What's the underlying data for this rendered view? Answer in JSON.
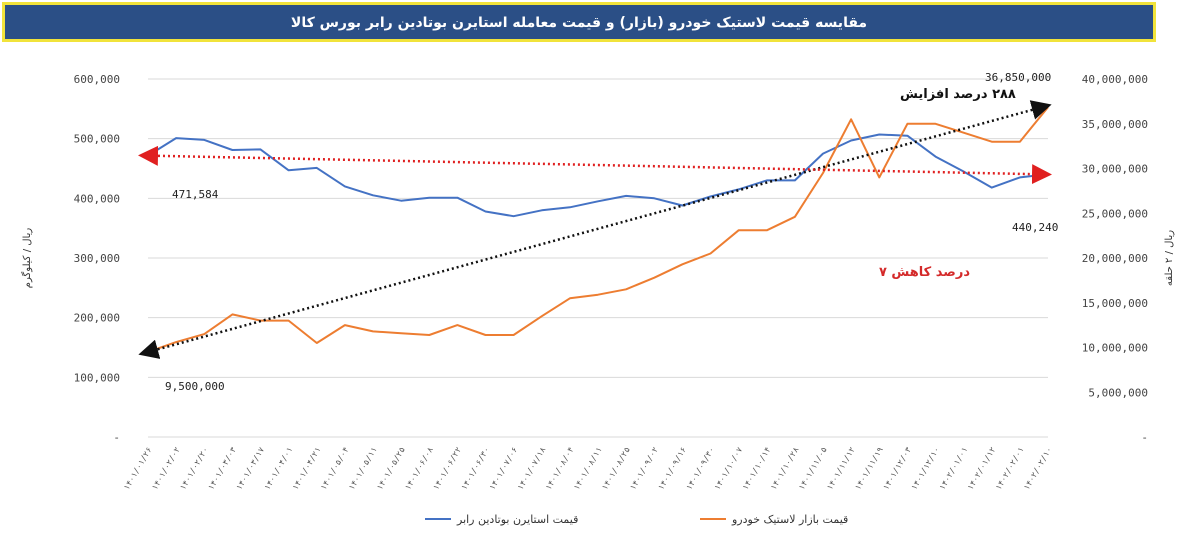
{
  "title": "مقایسه قیمت لاستیک خودرو (بازار) و قیمت معامله استایرن بوتادین رابر بورس کالا",
  "chart_data": {
    "type": "line",
    "title": "مقایسه قیمت لاستیک خودرو (بازار) و قیمت معامله استایرن بوتادین رابر بورس کالا",
    "left_axis": {
      "label": "ریال / کیلوگرم",
      "min": 0,
      "max": 600000,
      "ticks": [
        "-",
        "100,000",
        "200,000",
        "300,000",
        "400,000",
        "500,000",
        "600,000"
      ]
    },
    "right_axis": {
      "label": "ریال / ۲ حلقه",
      "min": 0,
      "max": 40000000,
      "ticks": [
        "-",
        "5,000,000",
        "10,000,000",
        "15,000,000",
        "20,000,000",
        "25,000,000",
        "30,000,000",
        "35,000,000",
        "40,000,000"
      ]
    },
    "categories": [
      "۱۴۰۱/۰۱/۲۶",
      "۱۴۰۱/۰۲/۰۲",
      "۱۴۰۱/۰۲/۲۰",
      "۱۴۰۱/۰۳/۰۳",
      "۱۴۰۱/۰۳/۱۷",
      "۱۴۰۱/۰۴/۰۱",
      "۱۴۰۱/۰۴/۲۱",
      "۱۴۰۱/۰۵/۰۴",
      "۱۴۰۱/۰۵/۱۱",
      "۱۴۰۱/۰۵/۲۵",
      "۱۴۰۱/۰۶/۰۸",
      "۱۴۰۱/۰۶/۲۲",
      "۱۴۰۱/۰۶/۳۰",
      "۱۴۰۱/۰۷/۰۶",
      "۱۴۰۱/۰۷/۱۸",
      "۱۴۰۱/۰۸/۰۴",
      "۱۴۰۱/۰۸/۱۱",
      "۱۴۰۱/۰۸/۲۵",
      "۱۴۰۱/۰۹/۰۲",
      "۱۴۰۱/۰۹/۱۶",
      "۱۴۰۱/۰۹/۳۰",
      "۱۴۰۱/۱۰/۰۷",
      "۱۴۰۱/۱۰/۱۴",
      "۱۴۰۱/۱۰/۲۸",
      "۱۴۰۱/۱۱/۰۵",
      "۱۴۰۱/۱۱/۱۲",
      "۱۴۰۱/۱۱/۱۹",
      "۱۴۰۱/۱۲/۰۳",
      "۱۴۰۱/۱۲/۱۰",
      "۱۴۰۲/۰۱/۰۱",
      "۱۴۰۲/۰۱/۱۲",
      "۱۴۰۲/۰۲/۰۱",
      "۱۴۰۲/۰۲/۱۰"
    ],
    "series": [
      {
        "name": "قیمت استایرن بوتادین رابر",
        "axis": "left",
        "color": "#4472c4",
        "values": [
          471584,
          501000,
          498000,
          481000,
          482000,
          447000,
          451000,
          420000,
          405000,
          396000,
          401000,
          401000,
          378000,
          370000,
          380000,
          385000,
          395000,
          404000,
          400000,
          388000,
          403000,
          415000,
          430000,
          430000,
          475000,
          497000,
          507000,
          505000,
          470000,
          445000,
          418000,
          435000,
          440240
        ]
      },
      {
        "name": "قیمت بازار لاستیک خودرو",
        "axis": "right",
        "color": "#ed7d31",
        "values": [
          9500000,
          10600000,
          11500000,
          13700000,
          13000000,
          13000000,
          10500000,
          12500000,
          11800000,
          11600000,
          11400000,
          12500000,
          11400000,
          11400000,
          13500000,
          15500000,
          15900000,
          16500000,
          17800000,
          19300000,
          20500000,
          23100000,
          23100000,
          24600000,
          29500000,
          35500000,
          29000000,
          35000000,
          35000000,
          34000000,
          33000000,
          33000000,
          36850000
        ]
      }
    ],
    "trendlines": [
      {
        "series": "قیمت بازار لاستیک خودرو",
        "color": "#111111",
        "from": 9500000,
        "to": 36850000,
        "start_label": "9,500,000",
        "end_label": "36,850,000",
        "note": "۲۸۸ درصد افزایش"
      },
      {
        "series": "قیمت استایرن بوتادین رابر",
        "color": "#e02020",
        "from": 471584,
        "to": 440240,
        "start_label": "471,584",
        "end_label": "440,240",
        "note": "۷ درصد کاهش"
      }
    ],
    "legend_position": "bottom"
  }
}
